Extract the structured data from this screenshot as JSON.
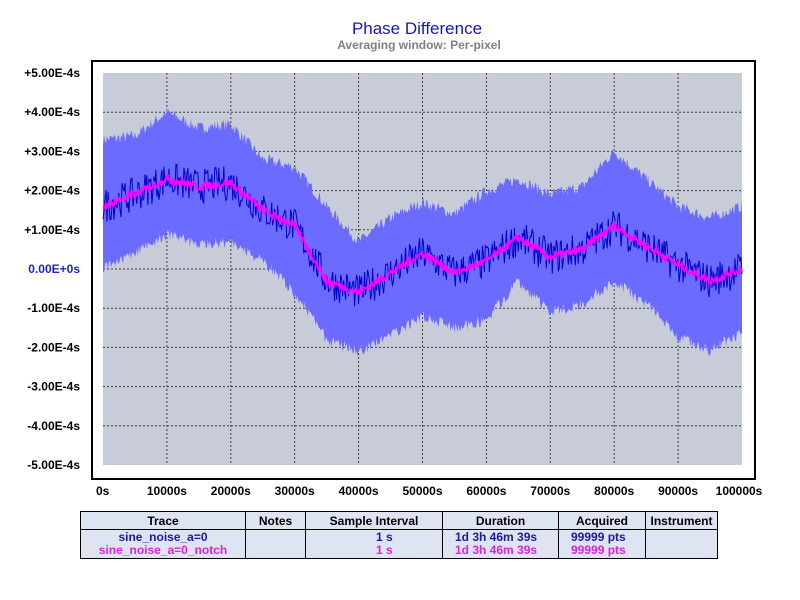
{
  "chart_data": {
    "type": "area",
    "title": "Phase Difference",
    "subtitle": "Averaging window: Per-pixel",
    "xlim": [
      0,
      100000
    ],
    "ylim": [
      -0.0005,
      0.0005
    ],
    "x_ticks": [
      "0s",
      "10000s",
      "20000s",
      "30000s",
      "40000s",
      "50000s",
      "60000s",
      "70000s",
      "80000s",
      "90000s",
      "100000s"
    ],
    "y_ticks": [
      "+5.00E-4s",
      "+4.00E-4s",
      "+3.00E-4s",
      "+2.00E-4s",
      "+1.00E-4s",
      "0.00E+0s",
      "-1.00E-4s",
      "-2.00E-4s",
      "-3.00E-4s",
      "-4.00E-4s",
      "-5.00E-4s"
    ],
    "grid": true,
    "colors": {
      "plot_bg": "#c8ccd8",
      "envelope": "#6b6bff",
      "trace": "#0000cc",
      "notch": "#ff00ff",
      "zero_label": "#2020d0"
    },
    "x": [
      0,
      5000,
      10000,
      15000,
      20000,
      25000,
      30000,
      35000,
      40000,
      45000,
      50000,
      55000,
      60000,
      65000,
      70000,
      75000,
      80000,
      85000,
      90000,
      95000,
      100000
    ],
    "series": [
      {
        "name": "sine_noise_a=0_notch",
        "values": [
          0.00016,
          0.00019,
          0.00023,
          0.00021,
          0.00022,
          0.00015,
          0.00011,
          -3e-05,
          -6e-05,
          -1e-05,
          4e-05,
          -1e-05,
          2e-05,
          8e-05,
          3e-05,
          5e-05,
          0.00011,
          6e-05,
          1e-05,
          -3e-05,
          0.0
        ]
      },
      {
        "name": "sine_noise_a=0",
        "values": [
          0.00016,
          0.00019,
          0.00023,
          0.00021,
          0.00022,
          0.00015,
          0.00011,
          -3e-05,
          -6e-05,
          -1e-05,
          4e-05,
          -1e-05,
          2e-05,
          8e-05,
          3e-05,
          5e-05,
          0.00011,
          6e-05,
          1e-05,
          -3e-05,
          0.0
        ]
      }
    ],
    "envelope_upper": [
      0.00033,
      0.00034,
      0.0004,
      0.00036,
      0.00037,
      0.00028,
      0.00026,
      0.00016,
      7e-05,
      0.00013,
      0.00017,
      0.00014,
      0.0002,
      0.00023,
      0.00019,
      0.00021,
      0.0003,
      0.00023,
      0.00016,
      0.00013,
      0.00016
    ],
    "envelope_lower": [
      0.0,
      4e-05,
      9e-05,
      6e-05,
      7e-05,
      2e-05,
      -6e-05,
      -0.00018,
      -0.00021,
      -0.00017,
      -0.00012,
      -0.00015,
      -0.00013,
      -3e-05,
      -0.00011,
      -9e-05,
      -3e-05,
      -9e-05,
      -0.00017,
      -0.00021,
      -0.00016
    ]
  },
  "table": {
    "headers": [
      "Trace",
      "Notes",
      "Sample Interval",
      "Duration",
      "Acquired",
      "Instrument"
    ],
    "rows": [
      {
        "trace": "sine_noise_a=0",
        "notes": "",
        "interval": "1 s",
        "duration": "1d 3h 46m 39s",
        "acquired": "99999 pts",
        "instrument": "",
        "color": "#1a1aa6"
      },
      {
        "trace": "sine_noise_a=0_notch",
        "notes": "",
        "interval": "1 s",
        "duration": "1d 3h 46m 39s",
        "acquired": "99999 pts",
        "instrument": "",
        "color": "#dd22dd"
      }
    ]
  }
}
